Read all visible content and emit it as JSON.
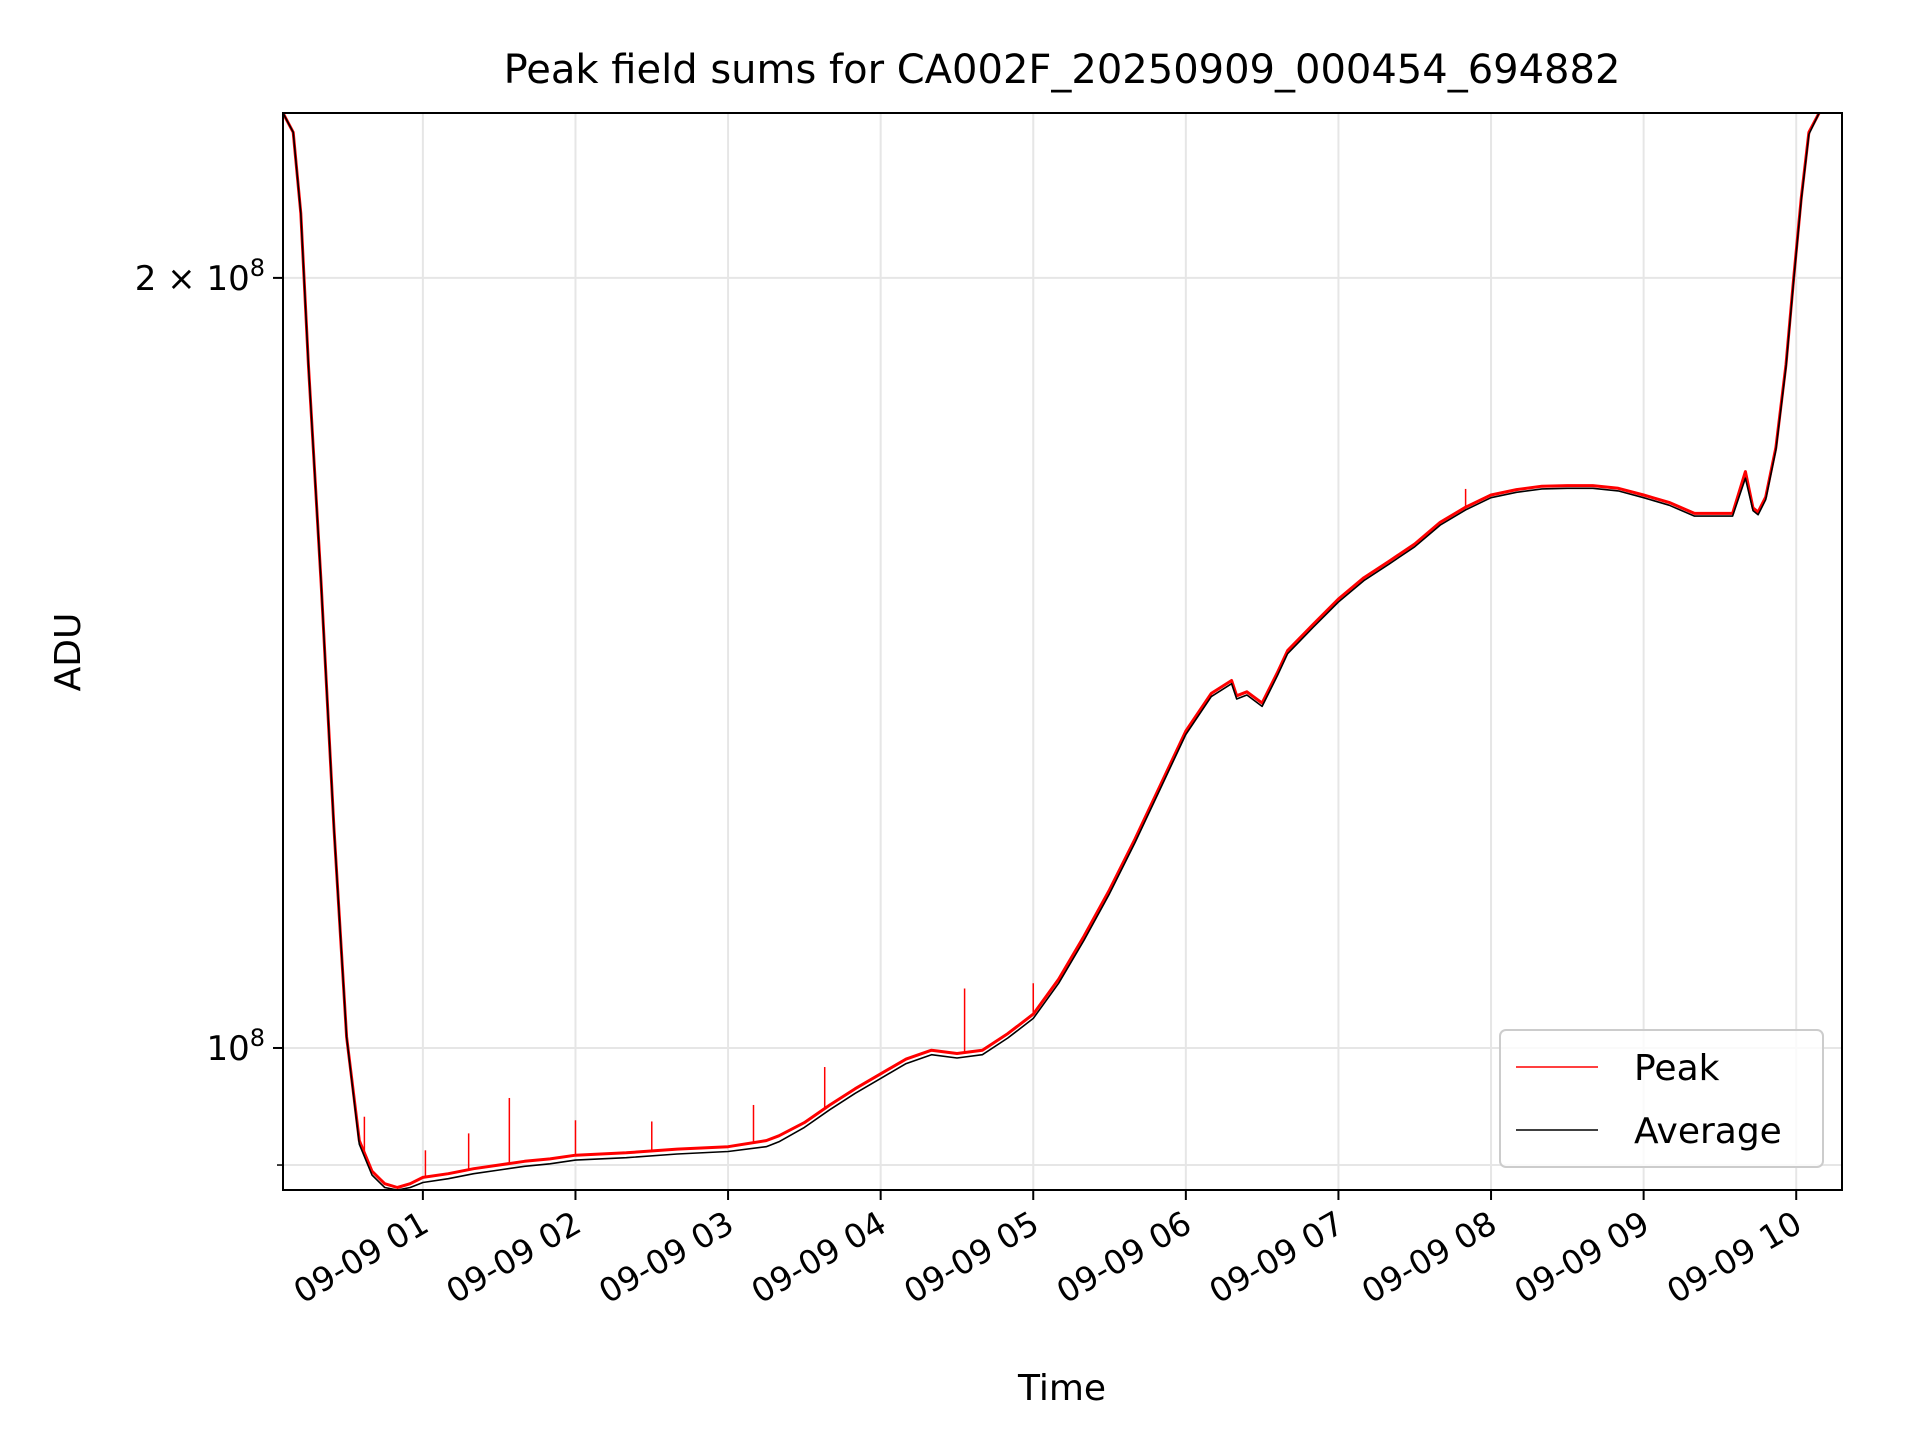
{
  "chart_data": {
    "type": "line",
    "title": "Peak field sums for CA002F_20250909_000454_694882",
    "xlabel": "Time",
    "ylabel": "ADU",
    "xlim": [
      "2025-09-09 00:05",
      "2025-09-09 10:18"
    ],
    "ylim": [
      88000000,
      232000000
    ],
    "yscale": "log",
    "grid": true,
    "legend_position": "lower right",
    "xticks": [
      {
        "value": "2025-09-09 01:00",
        "label": "09-09 01"
      },
      {
        "value": "2025-09-09 02:00",
        "label": "09-09 02"
      },
      {
        "value": "2025-09-09 03:00",
        "label": "09-09 03"
      },
      {
        "value": "2025-09-09 04:00",
        "label": "09-09 04"
      },
      {
        "value": "2025-09-09 05:00",
        "label": "09-09 05"
      },
      {
        "value": "2025-09-09 06:00",
        "label": "09-09 06"
      },
      {
        "value": "2025-09-09 07:00",
        "label": "09-09 07"
      },
      {
        "value": "2025-09-09 08:00",
        "label": "09-09 08"
      },
      {
        "value": "2025-09-09 09:00",
        "label": "09-09 09"
      },
      {
        "value": "2025-09-09 10:00",
        "label": "09-09 10"
      }
    ],
    "yticks_major": [
      {
        "value": 100000000,
        "label_base": "10",
        "label_exp": "8",
        "label_coef": ""
      },
      {
        "value": 200000000,
        "label_base": "10",
        "label_exp": "8",
        "label_coef": "2 × "
      }
    ],
    "yticks_minor": [
      90000000
    ],
    "series": [
      {
        "name": "Peak",
        "color": "#ff0000",
        "x": [
          "2025-09-09 00:05",
          "2025-09-09 00:09",
          "2025-09-09 00:12",
          "2025-09-09 00:15",
          "2025-09-09 00:20",
          "2025-09-09 00:25",
          "2025-09-09 00:30",
          "2025-09-09 00:35",
          "2025-09-09 00:40",
          "2025-09-09 00:45",
          "2025-09-09 00:50",
          "2025-09-09 00:55",
          "2025-09-09 01:00",
          "2025-09-09 01:10",
          "2025-09-09 01:20",
          "2025-09-09 01:30",
          "2025-09-09 01:40",
          "2025-09-09 01:50",
          "2025-09-09 02:00",
          "2025-09-09 02:20",
          "2025-09-09 02:40",
          "2025-09-09 03:00",
          "2025-09-09 03:15",
          "2025-09-09 03:20",
          "2025-09-09 03:30",
          "2025-09-09 03:40",
          "2025-09-09 03:50",
          "2025-09-09 04:00",
          "2025-09-09 04:10",
          "2025-09-09 04:20",
          "2025-09-09 04:30",
          "2025-09-09 04:40",
          "2025-09-09 04:50",
          "2025-09-09 05:00",
          "2025-09-09 05:10",
          "2025-09-09 05:20",
          "2025-09-09 05:30",
          "2025-09-09 05:40",
          "2025-09-09 05:50",
          "2025-09-09 06:00",
          "2025-09-09 06:10",
          "2025-09-09 06:18",
          "2025-09-09 06:20",
          "2025-09-09 06:24",
          "2025-09-09 06:30",
          "2025-09-09 06:36",
          "2025-09-09 06:40",
          "2025-09-09 06:50",
          "2025-09-09 07:00",
          "2025-09-09 07:10",
          "2025-09-09 07:20",
          "2025-09-09 07:30",
          "2025-09-09 07:40",
          "2025-09-09 07:50",
          "2025-09-09 08:00",
          "2025-09-09 08:10",
          "2025-09-09 08:20",
          "2025-09-09 08:30",
          "2025-09-09 08:40",
          "2025-09-09 08:50",
          "2025-09-09 09:00",
          "2025-09-09 09:10",
          "2025-09-09 09:20",
          "2025-09-09 09:35",
          "2025-09-09 09:40",
          "2025-09-09 09:43",
          "2025-09-09 09:45",
          "2025-09-09 09:48",
          "2025-09-09 09:52",
          "2025-09-09 09:56",
          "2025-09-09 09:59",
          "2025-09-09 10:02",
          "2025-09-09 10:05",
          "2025-09-09 10:09"
        ],
        "values": [
          232000000,
          228000000,
          212000000,
          185000000,
          152000000,
          122000000,
          101000000,
          92000000,
          89500000,
          88500000,
          88200000,
          88500000,
          89000000,
          89300000,
          89700000,
          90000000,
          90300000,
          90500000,
          90800000,
          91000000,
          91300000,
          91500000,
          92000000,
          92400000,
          93500000,
          95000000,
          96400000,
          97700000,
          99000000,
          99800000,
          99500000,
          99800000,
          101300000,
          103100000,
          106400000,
          110600000,
          115300000,
          120700000,
          126700000,
          133000000,
          137600000,
          139200000,
          137300000,
          137800000,
          136400000,
          140200000,
          143000000,
          146400000,
          149800000,
          152700000,
          155000000,
          157400000,
          160500000,
          162700000,
          164500000,
          165300000,
          165800000,
          165900000,
          165900000,
          165500000,
          164500000,
          163400000,
          161800000,
          161800000,
          168000000,
          162600000,
          162000000,
          164200000,
          171700000,
          185000000,
          200000000,
          215000000,
          228000000,
          232000000
        ],
        "spikes": [
          {
            "x": "2025-09-09 00:37",
            "value": 94000000
          },
          {
            "x": "2025-09-09 01:01",
            "value": 91200000
          },
          {
            "x": "2025-09-09 01:18",
            "value": 92600000
          },
          {
            "x": "2025-09-09 01:34",
            "value": 95600000
          },
          {
            "x": "2025-09-09 02:00",
            "value": 93700000
          },
          {
            "x": "2025-09-09 02:30",
            "value": 93600000
          },
          {
            "x": "2025-09-09 03:10",
            "value": 95000000
          },
          {
            "x": "2025-09-09 03:38",
            "value": 98300000
          },
          {
            "x": "2025-09-09 04:33",
            "value": 105500000
          },
          {
            "x": "2025-09-09 05:00",
            "value": 106000000
          },
          {
            "x": "2025-09-09 07:50",
            "value": 165400000
          }
        ]
      },
      {
        "name": "Average",
        "color": "#000000",
        "x": [
          "2025-09-09 00:05",
          "2025-09-09 00:09",
          "2025-09-09 00:12",
          "2025-09-09 00:15",
          "2025-09-09 00:20",
          "2025-09-09 00:25",
          "2025-09-09 00:30",
          "2025-09-09 00:35",
          "2025-09-09 00:40",
          "2025-09-09 00:45",
          "2025-09-09 00:50",
          "2025-09-09 00:55",
          "2025-09-09 01:00",
          "2025-09-09 01:10",
          "2025-09-09 01:20",
          "2025-09-09 01:30",
          "2025-09-09 01:40",
          "2025-09-09 01:50",
          "2025-09-09 02:00",
          "2025-09-09 02:20",
          "2025-09-09 02:40",
          "2025-09-09 03:00",
          "2025-09-09 03:15",
          "2025-09-09 03:20",
          "2025-09-09 03:30",
          "2025-09-09 03:40",
          "2025-09-09 03:50",
          "2025-09-09 04:00",
          "2025-09-09 04:10",
          "2025-09-09 04:20",
          "2025-09-09 04:30",
          "2025-09-09 04:40",
          "2025-09-09 04:50",
          "2025-09-09 05:00",
          "2025-09-09 05:10",
          "2025-09-09 05:20",
          "2025-09-09 05:30",
          "2025-09-09 05:40",
          "2025-09-09 05:50",
          "2025-09-09 06:00",
          "2025-09-09 06:10",
          "2025-09-09 06:18",
          "2025-09-09 06:20",
          "2025-09-09 06:24",
          "2025-09-09 06:30",
          "2025-09-09 06:36",
          "2025-09-09 06:40",
          "2025-09-09 06:50",
          "2025-09-09 07:00",
          "2025-09-09 07:10",
          "2025-09-09 07:20",
          "2025-09-09 07:30",
          "2025-09-09 07:40",
          "2025-09-09 07:50",
          "2025-09-09 08:00",
          "2025-09-09 08:10",
          "2025-09-09 08:20",
          "2025-09-09 08:30",
          "2025-09-09 08:40",
          "2025-09-09 08:50",
          "2025-09-09 09:00",
          "2025-09-09 09:10",
          "2025-09-09 09:20",
          "2025-09-09 09:35",
          "2025-09-09 09:40",
          "2025-09-09 09:43",
          "2025-09-09 09:45",
          "2025-09-09 09:48",
          "2025-09-09 09:52",
          "2025-09-09 09:56",
          "2025-09-09 09:59",
          "2025-09-09 10:02",
          "2025-09-09 10:05",
          "2025-09-09 10:09"
        ],
        "values": [
          232000000,
          228000000,
          212000000,
          185000000,
          152000000,
          122000000,
          101000000,
          91700000,
          89200000,
          88200000,
          88000000,
          88200000,
          88600000,
          88900000,
          89300000,
          89600000,
          89900000,
          90100000,
          90400000,
          90600000,
          90900000,
          91100000,
          91500000,
          91900000,
          93100000,
          94600000,
          96000000,
          97300000,
          98600000,
          99400000,
          99100000,
          99400000,
          100900000,
          102700000,
          106000000,
          110200000,
          114900000,
          120300000,
          126300000,
          132600000,
          137200000,
          138800000,
          136900000,
          137400000,
          136000000,
          139800000,
          142600000,
          146000000,
          149400000,
          152300000,
          154600000,
          157000000,
          160100000,
          162300000,
          164100000,
          164900000,
          165400000,
          165500000,
          165500000,
          165100000,
          164100000,
          163000000,
          161400000,
          161400000,
          167000000,
          162200000,
          161600000,
          163800000,
          171300000,
          184600000,
          199600000,
          214600000,
          227600000,
          232000000
        ]
      }
    ]
  }
}
